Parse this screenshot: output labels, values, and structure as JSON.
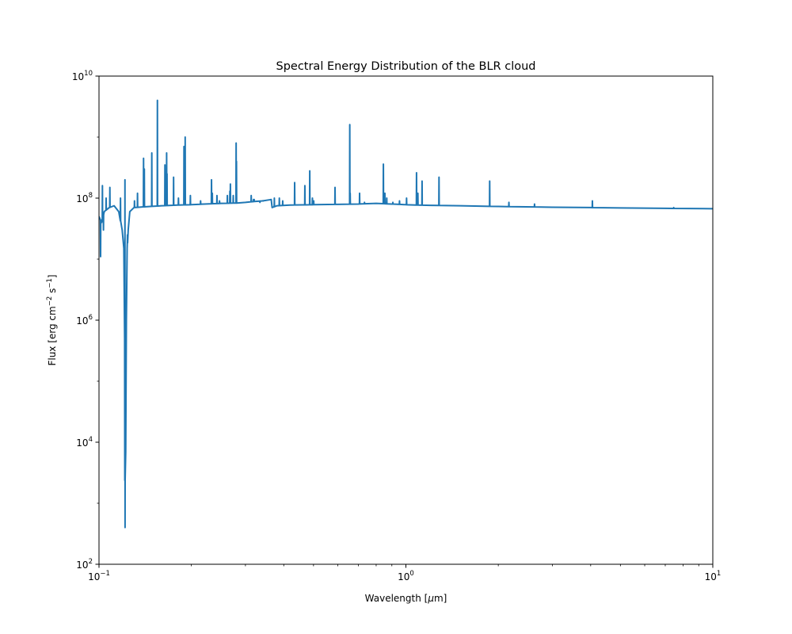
{
  "chart_data": {
    "type": "line",
    "title": "Spectral Energy Distribution of the BLR cloud",
    "xlabel": {
      "pre": "Wavelength [",
      "mu": "μ",
      "post": "m]"
    },
    "ylabel": {
      "pre": "Flux [erg cm",
      "exp1": "−2",
      "mid": " s",
      "exp2": "−1",
      "post": "]"
    },
    "xscale": "log",
    "yscale": "log",
    "xlim": [
      0.1,
      10
    ],
    "ylim": [
      100,
      10000000000
    ],
    "grid": false,
    "legend": "none",
    "color": "#1f77b4",
    "x_ticks": [
      {
        "value": 0.1,
        "base": "10",
        "exp": "−1"
      },
      {
        "value": 1,
        "base": "10",
        "exp": "0"
      },
      {
        "value": 10,
        "base": "10",
        "exp": "1"
      }
    ],
    "y_ticks": [
      {
        "value": 100,
        "base": "10",
        "exp": "2"
      },
      {
        "value": 10000,
        "base": "10",
        "exp": "4"
      },
      {
        "value": 1000000,
        "base": "10",
        "exp": "6"
      },
      {
        "value": 100000000,
        "base": "10",
        "exp": "8"
      },
      {
        "value": 10000000000,
        "base": "10",
        "exp": "10"
      }
    ],
    "series": [
      {
        "continuum": [
          [
            0.1,
            50000000.0
          ],
          [
            0.102,
            40000000.0
          ],
          [
            0.104,
            60000000.0
          ],
          [
            0.106,
            65000000.0
          ],
          [
            0.108,
            70000000.0
          ],
          [
            0.112,
            75000000.0
          ],
          [
            0.116,
            60000000.0
          ],
          [
            0.119,
            30000000.0
          ],
          [
            0.1205,
            15000000.0
          ],
          [
            0.1212,
            500000.0
          ],
          [
            0.1216,
            400.0
          ],
          [
            0.1222,
            7000.0
          ],
          [
            0.1228,
            1000000.0
          ],
          [
            0.1235,
            15000000.0
          ],
          [
            0.1245,
            30000000.0
          ],
          [
            0.126,
            60000000.0
          ],
          [
            0.13,
            70000000.0
          ],
          [
            0.14,
            72000000.0
          ],
          [
            0.16,
            75000000.0
          ],
          [
            0.18,
            77000000.0
          ],
          [
            0.2,
            78000000.0
          ],
          [
            0.22,
            80000000.0
          ],
          [
            0.25,
            82000000.0
          ],
          [
            0.28,
            83000000.0
          ],
          [
            0.3,
            85000000.0
          ],
          [
            0.32,
            88000000.0
          ],
          [
            0.34,
            90000000.0
          ],
          [
            0.36,
            94000000.0
          ],
          [
            0.364,
            95000000.0
          ],
          [
            0.3665,
            70000000.0
          ],
          [
            0.38,
            75000000.0
          ],
          [
            0.42,
            77000000.0
          ],
          [
            0.5,
            78000000.0
          ],
          [
            0.6,
            79000000.0
          ],
          [
            0.7,
            80000000.0
          ],
          [
            0.8,
            82000000.0
          ],
          [
            0.9,
            80000000.0
          ],
          [
            1.0,
            78000000.0
          ],
          [
            1.2,
            76000000.0
          ],
          [
            1.5,
            75000000.0
          ],
          [
            2.0,
            73000000.0
          ],
          [
            3.0,
            71000000.0
          ],
          [
            4.0,
            70000000.0
          ],
          [
            5.0,
            69000000.0
          ],
          [
            7.0,
            68000000.0
          ],
          [
            10.0,
            67000000.0
          ]
        ],
        "lines": [
          [
            0.1012,
            11000000.0
          ],
          [
            0.1026,
            160000000.0
          ],
          [
            0.1034,
            30000000.0
          ],
          [
            0.1055,
            100000000.0
          ],
          [
            0.1085,
            150000000.0
          ],
          [
            0.1175,
            100000000.0
          ],
          [
            0.1215,
            200000000.0
          ],
          [
            0.1238,
            25000000.0
          ],
          [
            0.1305,
            90000000.0
          ],
          [
            0.1335,
            120000000.0
          ],
          [
            0.1397,
            450000000.0
          ],
          [
            0.1405,
            300000000.0
          ],
          [
            0.1486,
            550000000.0
          ],
          [
            0.155,
            4000000000.0
          ],
          [
            0.164,
            350000000.0
          ],
          [
            0.1661,
            550000000.0
          ],
          [
            0.1666,
            250000000.0
          ],
          [
            0.175,
            220000000.0
          ],
          [
            0.1815,
            100000000.0
          ],
          [
            0.1892,
            700000000.0
          ],
          [
            0.1909,
            1000000000.0
          ],
          [
            0.1985,
            110000000.0
          ],
          [
            0.2143,
            90000000.0
          ],
          [
            0.2326,
            200000000.0
          ],
          [
            0.234,
            120000000.0
          ],
          [
            0.2423,
            110000000.0
          ],
          [
            0.247,
            90000000.0
          ],
          [
            0.262,
            110000000.0
          ],
          [
            0.267,
            130000000.0
          ],
          [
            0.268,
            170000000.0
          ],
          [
            0.2738,
            110000000.0
          ],
          [
            0.2798,
            800000000.0
          ],
          [
            0.2805,
            400000000.0
          ],
          [
            0.3133,
            110000000.0
          ],
          [
            0.3188,
            95000000.0
          ],
          [
            0.3203,
            95000000.0
          ],
          [
            0.3345,
            85000000.0
          ],
          [
            0.3426,
            90000000.0
          ],
          [
            0.3727,
            100000000.0
          ],
          [
            0.3869,
            100000000.0
          ],
          [
            0.3968,
            90000000.0
          ],
          [
            0.434,
            180000000.0
          ],
          [
            0.4686,
            160000000.0
          ],
          [
            0.4861,
            280000000.0
          ],
          [
            0.4959,
            100000000.0
          ],
          [
            0.5007,
            90000000.0
          ],
          [
            0.5876,
            150000000.0
          ],
          [
            0.6563,
            1600000000.0
          ],
          [
            0.6583,
            120000000.0
          ],
          [
            0.7065,
            120000000.0
          ],
          [
            0.733,
            85000000.0
          ],
          [
            0.8446,
            360000000.0
          ],
          [
            0.8498,
            110000000.0
          ],
          [
            0.8542,
            120000000.0
          ],
          [
            0.8662,
            100000000.0
          ],
          [
            0.9069,
            85000000.0
          ],
          [
            0.9532,
            90000000.0
          ],
          [
            1.005,
            100000000.0
          ],
          [
            1.083,
            260000000.0
          ],
          [
            1.094,
            120000000.0
          ],
          [
            1.129,
            190000000.0
          ],
          [
            1.282,
            220000000.0
          ],
          [
            1.875,
            190000000.0
          ],
          [
            2.166,
            85000000.0
          ],
          [
            2.625,
            80000000.0
          ],
          [
            4.052,
            90000000.0
          ],
          [
            7.46,
            70000000.0
          ]
        ]
      }
    ]
  }
}
